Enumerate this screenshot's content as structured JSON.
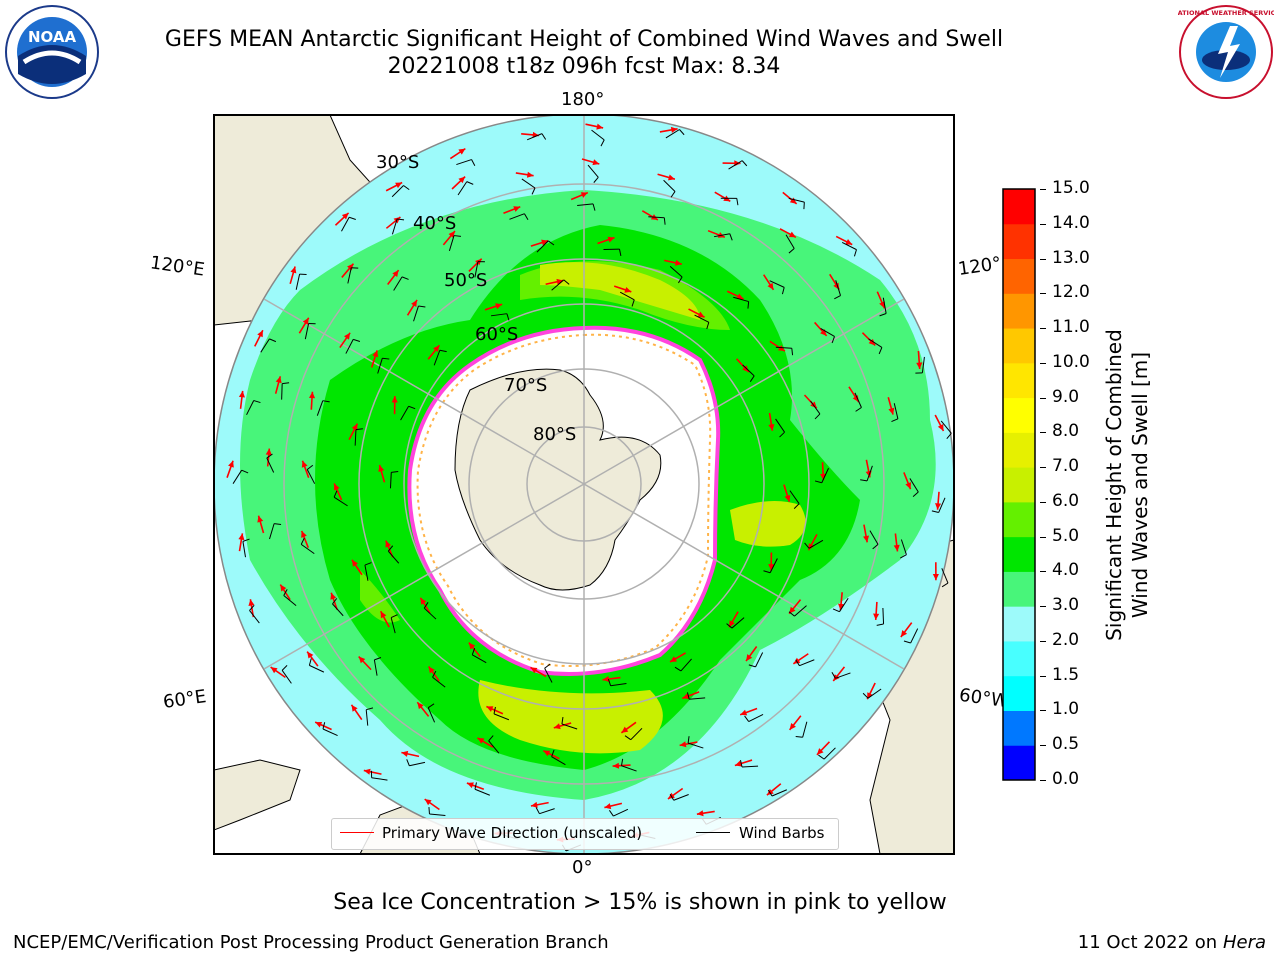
{
  "title": {
    "line1": "GEFS MEAN Antarctic Significant Height of Combined Wind Waves and Swell",
    "line2": "20221008 t18z 096h fcst   Max: 8.34"
  },
  "map": {
    "longitude_labels": {
      "top": "180°",
      "bottom": "0°",
      "upper_left": "120°E",
      "lower_left": "60°E",
      "upper_right": "120°",
      "lower_right": "60°W"
    },
    "latitude_labels": [
      "30°S",
      "40°S",
      "50°S",
      "60°S",
      "70°S",
      "80°S"
    ],
    "projection": "south polar stereographic",
    "colors": {
      "land": "#eeebd9",
      "ocean_low": "#9dfafa",
      "ocean_mid": "#48f57a",
      "ocean_high": "#00e600",
      "ice": "#ffffff",
      "grid": "#b0b0b0",
      "wave_arrow": "#ff0000",
      "barb": "#000000",
      "ice_edge": "#ff44dd"
    }
  },
  "legend": {
    "wave_label": "Primary Wave Direction (unscaled)",
    "barb_label": "Wind Barbs",
    "wave_color": "#ff0000",
    "barb_color": "#000000"
  },
  "colorbar": {
    "label_line1": "Significant Height of Combined",
    "label_line2": "Wind Waves and Swell [m]",
    "ticks": [
      "0.0",
      "0.5",
      "1.0",
      "1.5",
      "2.0",
      "3.0",
      "4.0",
      "5.0",
      "6.0",
      "7.0",
      "8.0",
      "9.0",
      "10.0",
      "11.0",
      "12.0",
      "13.0",
      "14.0",
      "15.0"
    ],
    "colors": [
      "#0000ff",
      "#0078ff",
      "#00ffff",
      "#48ffff",
      "#9dfafa",
      "#48f57a",
      "#00e600",
      "#64f000",
      "#c8f000",
      "#e6f000",
      "#ffff00",
      "#ffe600",
      "#ffc800",
      "#ff9600",
      "#ff6400",
      "#ff3200",
      "#ff0000"
    ]
  },
  "footer": {
    "note": "Sea Ice Concentration > 15% is shown in pink to yellow",
    "left": "NCEP/EMC/Verification Post Processing Product Generation Branch",
    "right_date": "11 Oct 2022 on ",
    "right_host": "Hera"
  },
  "logos": {
    "left": "NOAA",
    "right": "NATIONAL WEATHER SERVICE"
  }
}
